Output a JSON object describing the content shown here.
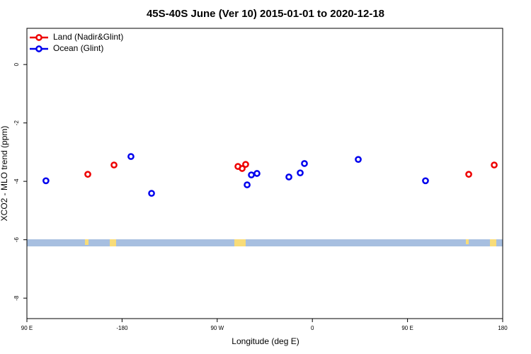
{
  "chart_data": {
    "type": "scatter",
    "title": "45S-40S June (Ver 10)   2015-01-01 to 2020-12-18",
    "x_label": "Longitude (deg E)",
    "y_label": "XCO2 - MLO trend (ppm)",
    "xlim": [
      -270,
      180
    ],
    "xticks": [
      {
        "value": -270,
        "label": "90 E"
      },
      -180,
      {
        "value": -90,
        "label": "90 W"
      },
      0,
      {
        "value": 90,
        "label": "90 E"
      },
      180
    ],
    "ylim": [
      -8.7,
      1.24
    ],
    "yticks": [
      0,
      -2,
      -4,
      -6,
      -8
    ],
    "legend": "top-left",
    "series": [
      {
        "name": "Land (Nadir&Glint)",
        "color": "#ee0000",
        "x": [
          -212.4,
          -187.6,
          -70.4,
          -66.4,
          -63.1,
          147.9,
          172
        ],
        "values": [
          -3.76,
          -3.44,
          -3.49,
          -3.56,
          -3.42,
          -3.76,
          -3.44
        ]
      },
      {
        "name": "Ocean (Glint)",
        "color": "#0000ee",
        "x": [
          -252,
          -171.6,
          -152.1,
          -61.7,
          -57.7,
          -52.4,
          -22.2,
          -11.5,
          -7.5,
          43.4,
          107
        ],
        "values": [
          -3.98,
          -3.15,
          -4.41,
          -4.12,
          -3.78,
          -3.73,
          -3.85,
          -3.71,
          -3.39,
          -3.25,
          -3.98
        ]
      }
    ]
  }
}
